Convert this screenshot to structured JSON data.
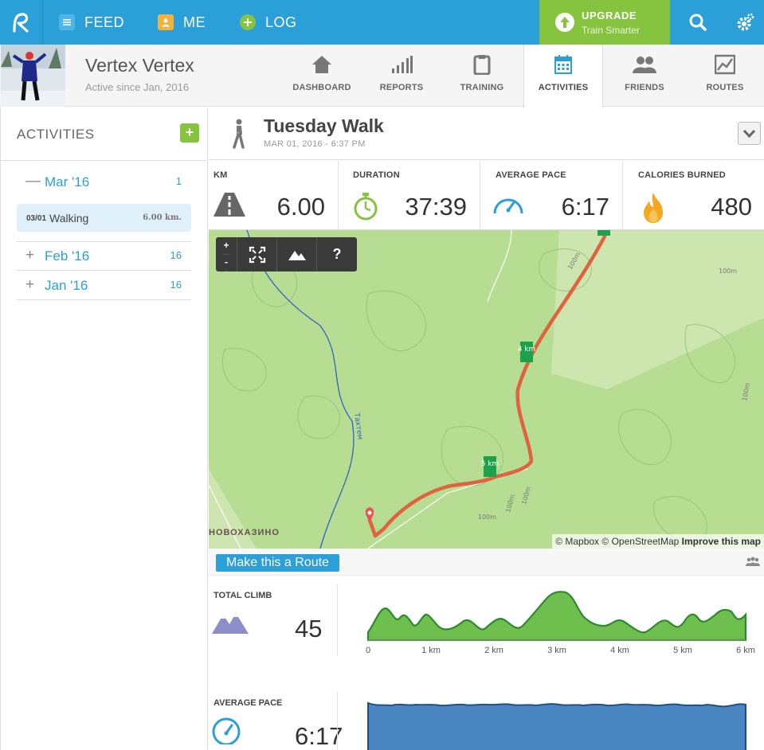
{
  "nav": {
    "feed": "FEED",
    "me": "ME",
    "log": "LOG",
    "upgrade_title": "UPGRADE",
    "upgrade_sub": "Train Smarter"
  },
  "profile": {
    "name": "Vertex Vertex",
    "since": "Active since Jan, 2016"
  },
  "tabs": [
    {
      "label": "DASHBOARD"
    },
    {
      "label": "REPORTS"
    },
    {
      "label": "TRAINING"
    },
    {
      "label": "ACTIVITIES"
    },
    {
      "label": "FRIENDS"
    },
    {
      "label": "ROUTES"
    }
  ],
  "sidebar": {
    "title": "ACTIVITIES",
    "add": "+",
    "months": [
      {
        "prefix": "—",
        "label": "Mar '16",
        "count": "1"
      },
      {
        "prefix": "+",
        "label": "Feb '16",
        "count": "16"
      },
      {
        "prefix": "+",
        "label": "Jan '16",
        "count": "16"
      }
    ],
    "activity": {
      "date": "03/01",
      "type": "Walking",
      "distance": "6.00 km."
    }
  },
  "activity": {
    "title": "Tuesday Walk",
    "date": "MAR 01, 2016 - 6:37 PM"
  },
  "stats": [
    {
      "label": "KM",
      "value": "6.00"
    },
    {
      "label": "DURATION",
      "value": "37:39"
    },
    {
      "label": "AVERAGE PACE",
      "value": "6:17"
    },
    {
      "label": "CALORIES BURNED",
      "value": "480"
    }
  ],
  "map": {
    "controls": {
      "zoom_in": "+",
      "zoom_out": "-",
      "help": "?"
    },
    "place": "НОВОХАЗИНО",
    "river": "Тахтем",
    "contour": "100m",
    "markers": [
      "4 km",
      "5 km"
    ],
    "attribution": {
      "mapbox": "© Mapbox",
      "osm": "© OpenStreetMap",
      "improve": "Improve this map"
    }
  },
  "route_button": "Make this a Route",
  "total_climb": {
    "label": "TOTAL CLIMB",
    "value": "45",
    "x_ticks": [
      "0",
      "1 km",
      "2 km",
      "3 km",
      "4 km",
      "5 km",
      "6 km"
    ]
  },
  "average_pace": {
    "label": "AVERAGE PACE",
    "value": "6:17"
  },
  "colors": {
    "brand_blue": "#2a9fd8",
    "brand_green": "#86c440",
    "route_red": "#e0623f",
    "climb_fill": "#6fbf4f",
    "pace_fill": "#4a86c2"
  }
}
